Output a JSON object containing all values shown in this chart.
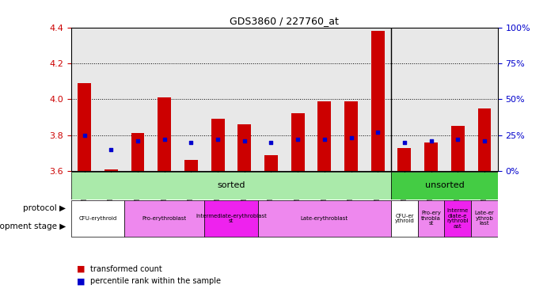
{
  "title": "GDS3860 / 227760_at",
  "samples": [
    "GSM559689",
    "GSM559690",
    "GSM559691",
    "GSM559692",
    "GSM559693",
    "GSM559694",
    "GSM559695",
    "GSM559696",
    "GSM559697",
    "GSM559698",
    "GSM559699",
    "GSM559700",
    "GSM559701",
    "GSM559702",
    "GSM559703",
    "GSM559704"
  ],
  "transformed_count": [
    4.09,
    3.61,
    3.81,
    4.01,
    3.66,
    3.89,
    3.86,
    3.69,
    3.92,
    3.99,
    3.99,
    4.38,
    3.73,
    3.76,
    3.85,
    3.95
  ],
  "percentile_rank": [
    25,
    15,
    21,
    22,
    20,
    22,
    21,
    20,
    22,
    22,
    23,
    27,
    20,
    21,
    22,
    21
  ],
  "ymin": 3.6,
  "ymax": 4.4,
  "yticks": [
    3.6,
    3.8,
    4.0,
    4.2,
    4.4
  ],
  "right_yticks": [
    0,
    25,
    50,
    75,
    100
  ],
  "right_yticklabels": [
    "0%",
    "25%",
    "50%",
    "75%",
    "100%"
  ],
  "hlines": [
    3.8,
    4.0,
    4.2
  ],
  "bar_color": "#cc0000",
  "dot_color": "#0000cc",
  "bar_width": 0.5,
  "protocol_sorted_label": "sorted",
  "protocol_unsorted_label": "unsorted",
  "protocol_sorted_color": "#aaeea a",
  "protocol_unsorted_color": "#44cc44",
  "legend_red_label": "transformed count",
  "legend_blue_label": "percentile rank within the sample",
  "axis_label_color_red": "#cc0000",
  "axis_label_color_blue": "#0000cc",
  "bg_color": "#ffffff",
  "plot_bg_color": "#e8e8e8"
}
